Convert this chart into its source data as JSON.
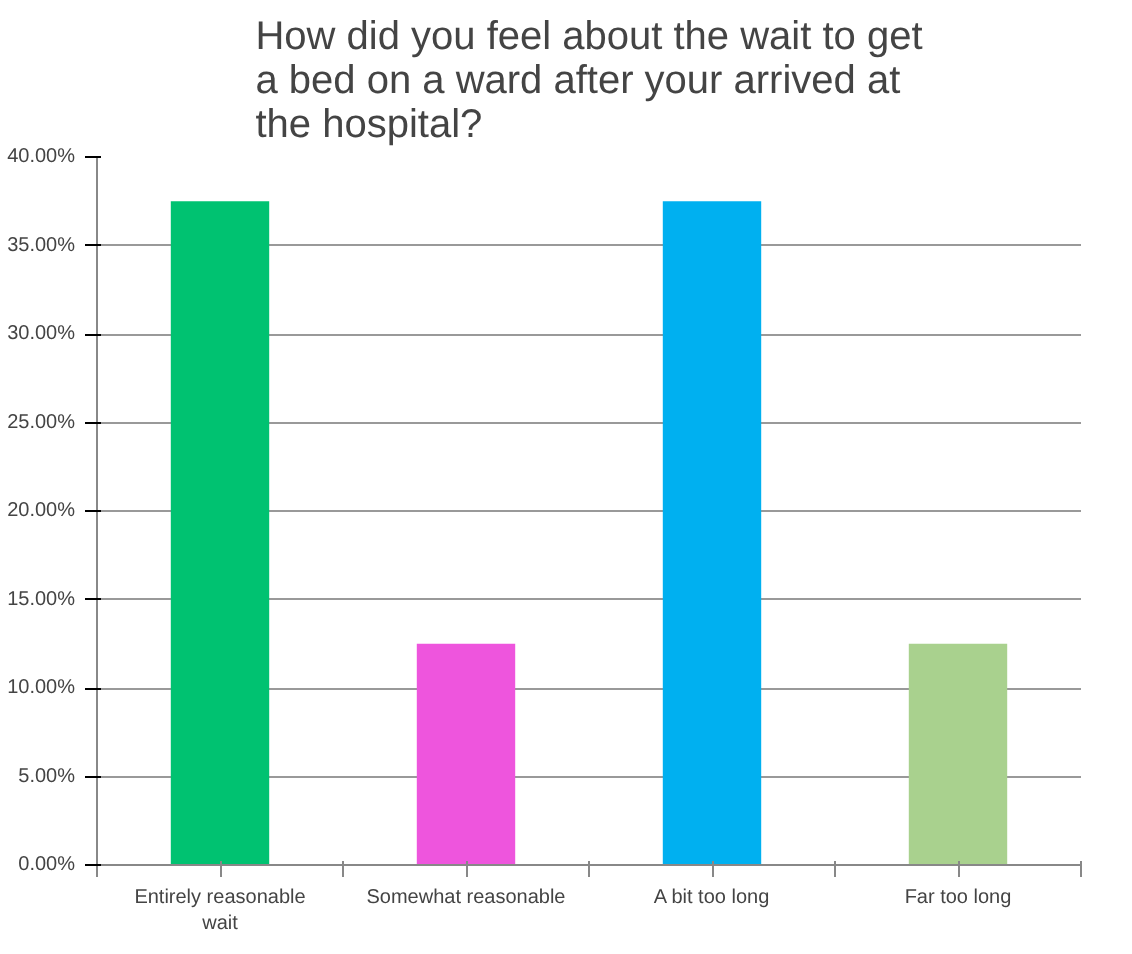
{
  "chart_data": {
    "type": "bar",
    "title": "How did you feel about the wait to get a bed on a ward after your arrived at the hospital?",
    "categories": [
      "Entirely reasonable wait",
      "Somewhat reasonable",
      "A bit too long",
      "Far too long"
    ],
    "values": [
      37.5,
      12.5,
      37.5,
      12.5
    ],
    "colors": [
      "#00c271",
      "#ee55dd",
      "#00b0f0",
      "#a9d18e"
    ],
    "ylim": [
      0,
      40
    ],
    "yticks": [
      {
        "value": 0,
        "label": "0.00%"
      },
      {
        "value": 5,
        "label": "5.00%"
      },
      {
        "value": 10,
        "label": "10.00%"
      },
      {
        "value": 15,
        "label": "15.00%"
      },
      {
        "value": 20,
        "label": "20.00%"
      },
      {
        "value": 25,
        "label": "25.00%"
      },
      {
        "value": 30,
        "label": "30.00%"
      },
      {
        "value": 35,
        "label": "35.00%"
      },
      {
        "value": 40,
        "label": "40.00%"
      }
    ],
    "grid": "y"
  }
}
